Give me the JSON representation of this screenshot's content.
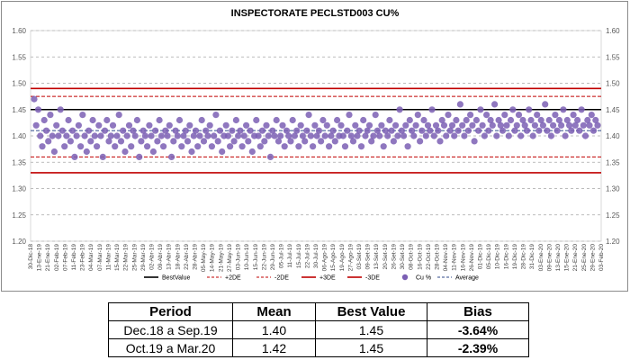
{
  "chart_data": {
    "type": "scatter",
    "title": "INSPECTORATE PECLSTD003 CU%",
    "ylim": [
      1.2,
      1.6
    ],
    "yticks": [
      "1.20",
      "1.25",
      "1.30",
      "1.35",
      "1.40",
      "1.45",
      "1.50",
      "1.55",
      "1.60"
    ],
    "x_tick_labels": [
      "30-Dic-18",
      "13-Ene-19",
      "21-Ene-19",
      "02-Feb-19",
      "07-Feb-19",
      "11-Feb-19",
      "23-Feb-19",
      "04-Mar-19",
      "07-Mar-19",
      "11-Mar-19",
      "15-Mar-19",
      "22-Mar-19",
      "25-Mar-19",
      "29-Mar-19",
      "02-Abr-19",
      "09-Abr-19",
      "13-Abr-19",
      "18-Abr-19",
      "22-Abr-19",
      "28-Abr-19",
      "05-May-19",
      "14-May-19",
      "21-May-19",
      "27-May-19",
      "03-Jun-19",
      "10-Jun-19",
      "15-Jun-19",
      "22-Jun-19",
      "29-Jun-19",
      "05-Jul-19",
      "11-Jul-19",
      "15-Jul-19",
      "22-Jul-19",
      "30-Jul-19",
      "06-Ago-19",
      "15-Ago-19",
      "19-Ago-19",
      "27-Ago-19",
      "03-Set-19",
      "09-Set-19",
      "13-Set-19",
      "20-Set-19",
      "26-Set-19",
      "30-Set-19",
      "08-Oct-19",
      "16-Oct-19",
      "22-Oct-19",
      "28-Oct-19",
      "04-Nov-19",
      "11-Nov-19",
      "16-Nov-19",
      "26-Nov-19",
      "01-Dic-19",
      "05-Dic-19",
      "10-Dic-19",
      "16-Dic-19",
      "19-Dic-19",
      "28-Dic-19",
      "31-Dic-19",
      "03-Ene-20",
      "09-Ene-20",
      "13-Ene-20",
      "15-Ene-20",
      "21-Ene-20",
      "25-Ene-20",
      "29-Ene-20",
      "03-Feb-20"
    ],
    "reference_lines": {
      "best_value": 1.45,
      "plus_2de": 1.475,
      "minus_2de": 1.36,
      "plus_3de": 1.49,
      "minus_3de": 1.33,
      "average": 1.41
    },
    "legend": [
      "BestValue",
      "+2DE",
      "-2DE",
      "+3DE",
      "-3DE",
      "Cu %",
      "Average"
    ],
    "series_cu": [
      1.47,
      1.42,
      1.45,
      1.4,
      1.38,
      1.43,
      1.41,
      1.39,
      1.44,
      1.4,
      1.37,
      1.42,
      1.4,
      1.45,
      1.41,
      1.38,
      1.4,
      1.43,
      1.39,
      1.41,
      1.36,
      1.4,
      1.42,
      1.38,
      1.44,
      1.4,
      1.37,
      1.41,
      1.39,
      1.43,
      1.4,
      1.38,
      1.42,
      1.4,
      1.36,
      1.41,
      1.43,
      1.39,
      1.4,
      1.42,
      1.38,
      1.4,
      1.44,
      1.39,
      1.41,
      1.37,
      1.4,
      1.42,
      1.38,
      1.41,
      1.4,
      1.43,
      1.36,
      1.39,
      1.41,
      1.4,
      1.38,
      1.42,
      1.4,
      1.37,
      1.41,
      1.39,
      1.43,
      1.4,
      1.38,
      1.41,
      1.4,
      1.42,
      1.36,
      1.39,
      1.41,
      1.4,
      1.43,
      1.38,
      1.4,
      1.41,
      1.39,
      1.42,
      1.37,
      1.4,
      1.41,
      1.38,
      1.4,
      1.43,
      1.39,
      1.41,
      1.4,
      1.42,
      1.38,
      1.4,
      1.44,
      1.39,
      1.41,
      1.37,
      1.4,
      1.42,
      1.4,
      1.38,
      1.41,
      1.39,
      1.43,
      1.4,
      1.41,
      1.38,
      1.4,
      1.42,
      1.39,
      1.41,
      1.37,
      1.4,
      1.43,
      1.4,
      1.38,
      1.41,
      1.39,
      1.42,
      1.4,
      1.36,
      1.41,
      1.4,
      1.43,
      1.39,
      1.4,
      1.42,
      1.38,
      1.41,
      1.4,
      1.39,
      1.43,
      1.4,
      1.41,
      1.38,
      1.42,
      1.4,
      1.39,
      1.41,
      1.44,
      1.4,
      1.38,
      1.42,
      1.4,
      1.41,
      1.39,
      1.43,
      1.4,
      1.42,
      1.38,
      1.4,
      1.41,
      1.39,
      1.43,
      1.4,
      1.42,
      1.4,
      1.38,
      1.41,
      1.44,
      1.4,
      1.39,
      1.42,
      1.4,
      1.41,
      1.38,
      1.43,
      1.4,
      1.41,
      1.42,
      1.39,
      1.4,
      1.44,
      1.41,
      1.4,
      1.42,
      1.38,
      1.41,
      1.4,
      1.43,
      1.41,
      1.39,
      1.42,
      1.4,
      1.45,
      1.41,
      1.4,
      1.42,
      1.38,
      1.43,
      1.41,
      1.4,
      1.42,
      1.44,
      1.39,
      1.41,
      1.43,
      1.4,
      1.42,
      1.41,
      1.45,
      1.4,
      1.42,
      1.41,
      1.39,
      1.43,
      1.42,
      1.4,
      1.44,
      1.41,
      1.42,
      1.4,
      1.43,
      1.41,
      1.46,
      1.42,
      1.4,
      1.43,
      1.41,
      1.44,
      1.42,
      1.39,
      1.43,
      1.41,
      1.45,
      1.42,
      1.4,
      1.44,
      1.41,
      1.43,
      1.42,
      1.46,
      1.4,
      1.43,
      1.42,
      1.41,
      1.44,
      1.42,
      1.4,
      1.43,
      1.45,
      1.41,
      1.42,
      1.44,
      1.4,
      1.43,
      1.42,
      1.41,
      1.45,
      1.43,
      1.4,
      1.42,
      1.44,
      1.41,
      1.43,
      1.42,
      1.46,
      1.41,
      1.43,
      1.4,
      1.42,
      1.44,
      1.41,
      1.43,
      1.42,
      1.45,
      1.4,
      1.43,
      1.42,
      1.41,
      1.44,
      1.42,
      1.43,
      1.41,
      1.45,
      1.42,
      1.4,
      1.43,
      1.42,
      1.44,
      1.41,
      1.43,
      1.42
    ]
  },
  "table": {
    "headers": [
      "Period",
      "Mean",
      "Best Value",
      "Bias"
    ],
    "rows": [
      {
        "period": "Dec.18 a Sep.19",
        "mean": "1.40",
        "best": "1.45",
        "bias": "-3.64%"
      },
      {
        "period": "Oct.19 a Mar.20",
        "mean": "1.42",
        "best": "1.45",
        "bias": "-2.39%"
      }
    ]
  },
  "colors": {
    "marker": "#7b5fb4",
    "best_value_line": "#000000",
    "de2_line": "#c00000",
    "de3_line": "#c00000",
    "average_line": "#2f4a8a",
    "grid": "#a6a6a6"
  }
}
